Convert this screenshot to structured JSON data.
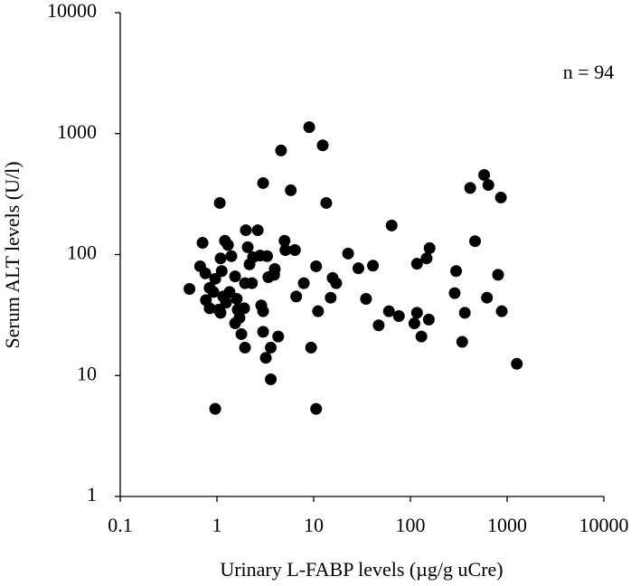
{
  "chart_data": {
    "type": "scatter",
    "x_label": "Urinary L-FABP levels  (µg/g uCre)",
    "y_label": "Serum ALT  levels (U/l)",
    "annotation": "n = 94",
    "color": "#000000",
    "log_x": true,
    "log_y": true,
    "xlim": [
      0.1,
      10000
    ],
    "ylim": [
      1,
      10000
    ],
    "xticks": [
      0.1,
      1,
      10,
      100,
      1000,
      10000
    ],
    "yticks": [
      1,
      10,
      100,
      1000,
      10000
    ],
    "x": [
      0.52,
      0.71,
      0.67,
      0.76,
      0.77,
      0.84,
      0.96,
      0.92,
      0.96,
      1.07,
      1.09,
      1.04,
      1.09,
      1.16,
      1.21,
      1.3,
      1.24,
      1.54,
      1.6,
      1.64,
      1.54,
      1.71,
      1.91,
      1.95,
      1.99,
      2.08,
      2.17,
      2.36,
      1.95,
      2.3,
      2.64,
      2.8,
      2.87,
      3.0,
      3.0,
      3.2,
      3.4,
      3.6,
      3.6,
      3.9,
      3.96,
      4.3,
      3.0,
      4.6,
      5.0,
      5.1,
      5.8,
      6.4,
      6.6,
      7.9,
      9.0,
      9.4,
      10.6,
      10.6,
      11.1,
      12.4,
      13.5,
      15,
      15.7,
      17.1,
      22.7,
      29,
      34.8,
      41,
      47,
      60,
      64,
      76,
      110,
      117,
      117,
      130,
      147,
      155,
      158,
      287,
      297,
      343,
      365,
      415,
      466,
      579,
      619,
      640,
      806,
      862,
      880,
      1260,
      1.35,
      0.84,
      1.79,
      1.12,
      1.41,
      3.3
    ],
    "values": [
      52,
      125,
      80,
      70,
      42,
      53,
      63,
      49,
      5.3,
      267,
      93,
      35,
      33,
      45,
      130,
      120,
      40,
      66,
      43,
      35,
      27,
      30,
      36,
      17,
      159,
      115,
      83,
      95,
      58,
      58,
      159,
      98,
      38,
      34,
      23,
      14,
      65,
      17,
      9.3,
      68,
      76,
      21,
      390,
      725,
      130,
      109,
      340,
      109,
      45,
      58,
      1130,
      17,
      80,
      5.3,
      34,
      800,
      267,
      44,
      64,
      58,
      102,
      77,
      43,
      81,
      26,
      34,
      174,
      31,
      27,
      33,
      84,
      21,
      93,
      29,
      113,
      48,
      73,
      19,
      33,
      355,
      129,
      455,
      44,
      376,
      68,
      296,
      34,
      12.5,
      49,
      36,
      22,
      73,
      97,
      97
    ]
  }
}
